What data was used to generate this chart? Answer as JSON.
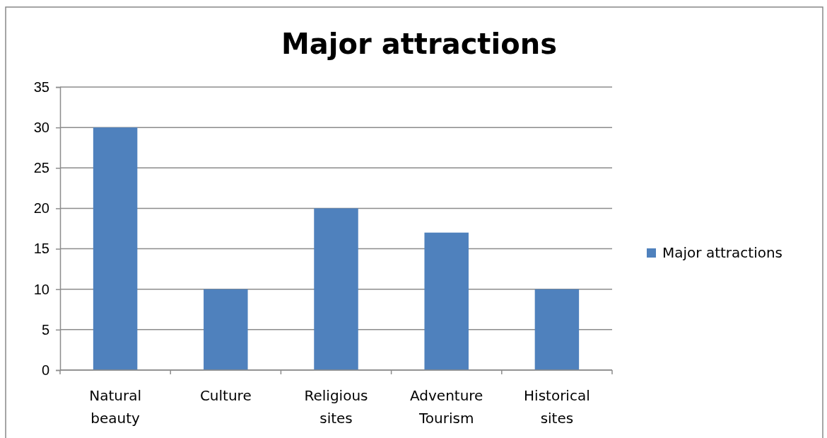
{
  "chart_data": {
    "type": "bar",
    "title": "Major attractions",
    "categories": [
      "Natural beauty",
      "Culture",
      "Religious sites",
      "Adventure Tourism",
      "Historical sites"
    ],
    "series": [
      {
        "name": "Major attractions",
        "color": "#4f81bd",
        "values": [
          30,
          10,
          20,
          17,
          10
        ]
      }
    ],
    "ylim": [
      0,
      35
    ],
    "yticks": [
      0,
      5,
      10,
      15,
      20,
      25,
      30,
      35
    ],
    "grid": "y",
    "legend": "right"
  }
}
